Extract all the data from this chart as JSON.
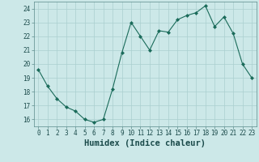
{
  "x": [
    0,
    1,
    2,
    3,
    4,
    5,
    6,
    7,
    8,
    9,
    10,
    11,
    12,
    13,
    14,
    15,
    16,
    17,
    18,
    19,
    20,
    21,
    22,
    23
  ],
  "y": [
    19.6,
    18.4,
    17.5,
    16.9,
    16.6,
    16.0,
    15.8,
    16.0,
    18.2,
    20.8,
    23.0,
    22.0,
    21.0,
    22.4,
    22.3,
    23.2,
    23.5,
    23.7,
    24.2,
    22.7,
    23.4,
    22.2,
    20.0,
    19.0
  ],
  "xlabel": "Humidex (Indice chaleur)",
  "line_color": "#1a6b5a",
  "marker_color": "#1a6b5a",
  "bg_color": "#cce8e8",
  "grid_color": "#aacfcf",
  "ylim": [
    15.5,
    24.5
  ],
  "xlim": [
    -0.5,
    23.5
  ],
  "yticks": [
    16,
    17,
    18,
    19,
    20,
    21,
    22,
    23,
    24
  ],
  "xticks": [
    0,
    1,
    2,
    3,
    4,
    5,
    6,
    7,
    8,
    9,
    10,
    11,
    12,
    13,
    14,
    15,
    16,
    17,
    18,
    19,
    20,
    21,
    22,
    23
  ],
  "tick_fontsize": 5.5,
  "xlabel_fontsize": 7.5
}
